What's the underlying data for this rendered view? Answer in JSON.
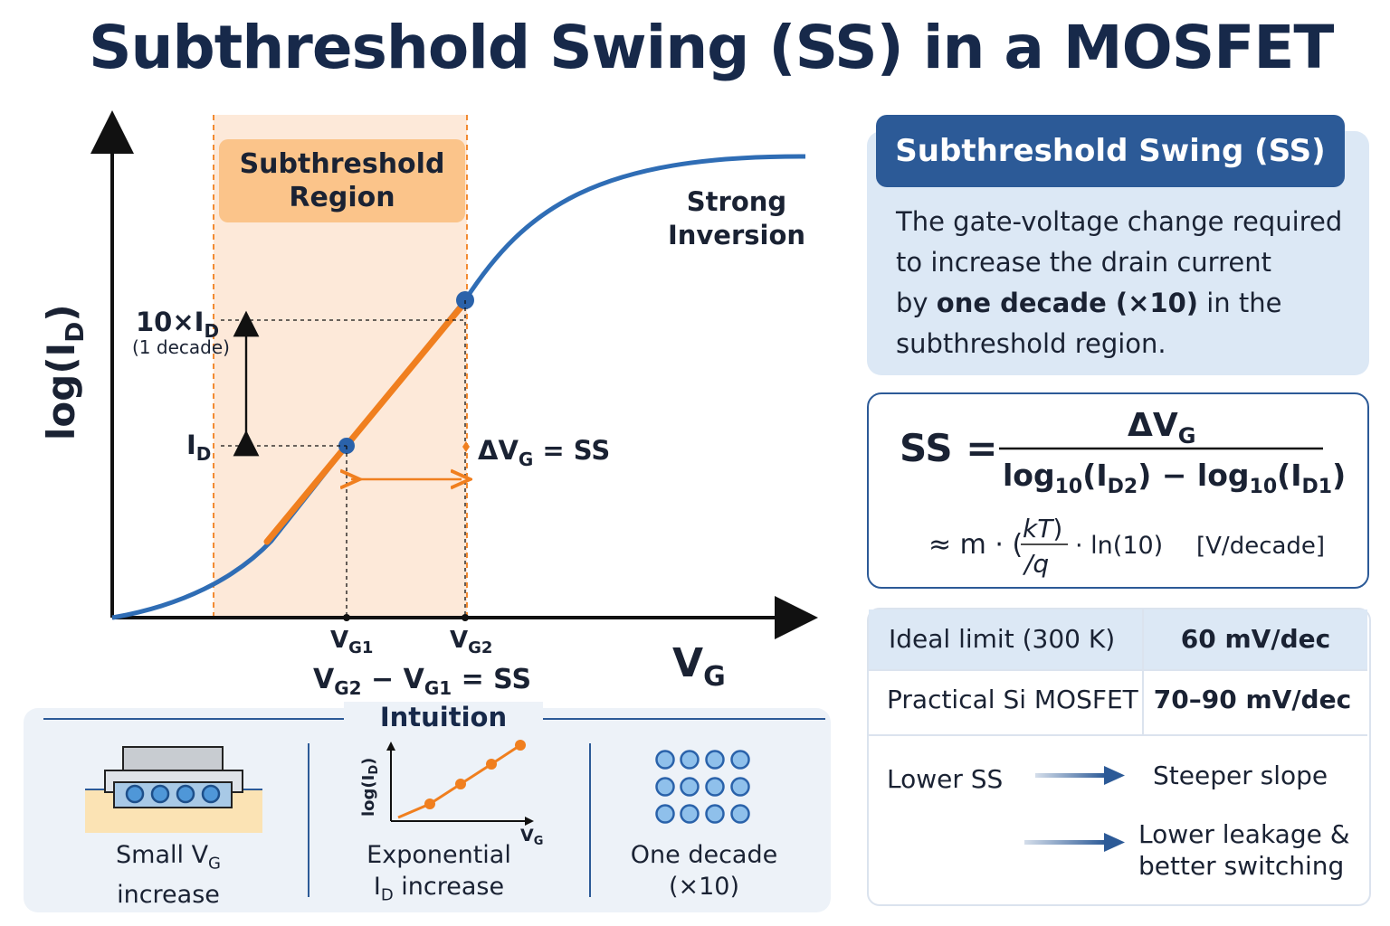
{
  "title": "Subthreshold Swing (SS) in a MOSFET",
  "plot": {
    "y_axis_label": "log(I",
    "y_axis_sub": "D",
    "y_axis_close": ")",
    "x_axis_label": "V",
    "x_axis_sub": "G",
    "region_label_line1": "Subthreshold",
    "region_label_line2": "Region",
    "strong_line1": "Strong",
    "strong_line2": "Inversion",
    "tenx_label": "10×I",
    "tenx_sub": "D",
    "decade_note": "(1 decade)",
    "id_label": "I",
    "id_sub": "D",
    "dvg_label": "ΔV",
    "dvg_sub": "G",
    "dvg_eq": " = SS",
    "vg1_label": "V",
    "vg1_sub": "G1",
    "vg2_label": "V",
    "vg2_sub": "G2",
    "diff_a": "V",
    "diff_a_sub": "G2",
    "diff_mid": " − V",
    "diff_b_sub": "G1",
    "diff_end": " = SS"
  },
  "definition": {
    "heading": "Subthreshold Swing (SS)",
    "line1": "The gate-voltage change required",
    "line2": "to increase the drain current",
    "line3_pre": "by ",
    "line3_bold": "one decade (×10)",
    "line3_post": " in the",
    "line4": "subthreshold region."
  },
  "formula": {
    "lhs": "SS =",
    "numerator": "ΔV",
    "numerator_sub": "G",
    "den_a": "log",
    "den_a_sub": "10",
    "den_a_arg": "(I",
    "den_a_arg_sub": "D2",
    "den_mid": ") − log",
    "den_b_sub": "10",
    "den_b_arg": "(I",
    "den_b_arg_sub": "D1",
    "den_end": ")",
    "approx": "≈ m · (",
    "kt": "kT",
    "kt_close": ")",
    "q": "/q",
    "ln": "· ln(10)",
    "unit": "[V/decade]"
  },
  "table": {
    "row1_label": "Ideal limit (300 K)",
    "row1_value": "60 mV/dec",
    "row2_label": "Practical Si MOSFET",
    "row2_value": "70–90 mV/dec",
    "lower_ss": "Lower SS",
    "effect1": "Steeper slope",
    "effect2_line1": "Lower leakage &",
    "effect2_line2": "better switching"
  },
  "intuition": {
    "title": "Intuition",
    "cap1_line1": "Small V",
    "cap1_sub": "G",
    "cap1_line2": "increase",
    "mini_y": "log(I",
    "mini_y_sub": "D",
    "mini_y_close": ")",
    "mini_x": "V",
    "mini_x_sub": "G",
    "cap2_line1": "Exponential",
    "cap2_line2_a": "I",
    "cap2_line2_sub": "D",
    "cap2_line2_b": " increase",
    "cap3_line1": "One decade",
    "cap3_line2": "(×10)"
  },
  "colors": {
    "navy": "#17294a",
    "blue": "#2c5a97",
    "curve": "#2f6db5",
    "orange": "#f07f1f",
    "region": "#fde9d9",
    "region_label": "#fbc48a"
  }
}
